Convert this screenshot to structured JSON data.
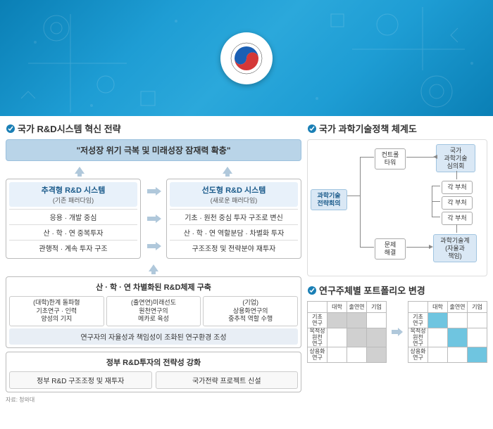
{
  "sections": {
    "strategy": "국가 R&D시스템 혁신 전략",
    "policy": "국가 과학기술정책 체계도",
    "portfolio": "연구주체별 포트폴리오 변경"
  },
  "banner": "\"저성장 위기 극복 및 미래성장 잠재력 확충\"",
  "paradigm": {
    "left": {
      "title": "추격형 R&D 시스템",
      "sub": "(기존 패러다임)",
      "rows": [
        "응용 · 개발 중심",
        "산 · 학 · 연 중복투자",
        "관행적 · 계속 투자 구조"
      ]
    },
    "right": {
      "title": "선도형 R&D 시스템",
      "sub": "(새로운 패러다임)",
      "rows": [
        "기초 · 원천 중심 투자 구조로 변신",
        "산 · 학 · 연 역할분담 · 차별화 투자",
        "구조조정 및 전략분야 재투자"
      ]
    }
  },
  "block1": {
    "title": "산 · 학 · 연 차별화된 R&D체제 구축",
    "boxes": [
      "(대학)한계 돌파형\n기초연구 · 인력\n양성의 기지",
      "(출연연)미래선도\n원천연구의\n메카로 육성",
      "(기업)\n상용화연구의\n중추적 역할 수행"
    ],
    "env": "연구자의 자율성과 책임성이 조화된 연구환경 조성"
  },
  "block2": {
    "title": "정부 R&D투자의 전략성 강화",
    "boxes": [
      "정부 R&D 구조조정 및 재투자",
      "국가전략 프로젝트 신설"
    ]
  },
  "source": "자료: 청와대",
  "flow": {
    "main": "과학기술\n전략회의",
    "tower": "컨트롤\n타워",
    "council": "국가\n과학기술\n심의회",
    "dept": "각 부처",
    "solve": "문제\n해결",
    "community": "과학기술계\n(자율과\n책임)"
  },
  "portfolio": {
    "cols": [
      "대학",
      "출연연",
      "기업"
    ],
    "rows": [
      "기초\n연구",
      "목적성\n원천\n연구",
      "상용화\n연구"
    ],
    "left_cells": [
      [
        "gray",
        "gray",
        ""
      ],
      [
        "",
        "gray",
        "gray"
      ],
      [
        "",
        "",
        "gray"
      ]
    ],
    "right_cells": [
      [
        "cyan",
        "",
        ""
      ],
      [
        "",
        "cyan",
        ""
      ],
      [
        "",
        "",
        "cyan"
      ]
    ]
  },
  "colors": {
    "accent": "#1a7fb5",
    "arrow": "#b0c8db",
    "flow_arrow": "#888"
  }
}
